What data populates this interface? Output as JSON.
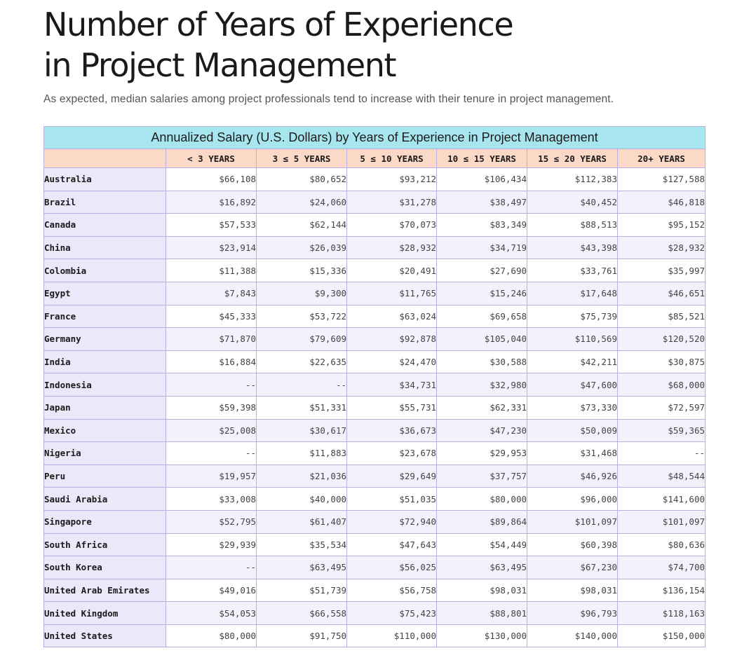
{
  "page": {
    "title_line1": "Number of Years of Experience",
    "title_line2": "in Project Management",
    "subtitle": "As expected, median salaries among project professionals tend to increase with their tenure in project management."
  },
  "colors": {
    "caption_bg": "#a8e6ef",
    "header_bg": "#fcd9c7",
    "country_bg": "#ebe8fa",
    "border": "#b7b0e0"
  },
  "chart_data": {
    "type": "table",
    "title": "Annualized Salary (U.S. Dollars) by Years of Experience in Project Management",
    "columns": [
      "< 3 YEARS",
      "3 ≤ 5 YEARS",
      "5 ≤ 10 YEARS",
      "10 ≤ 15 YEARS",
      "15 ≤ 20 YEARS",
      "20+ YEARS"
    ],
    "rows": [
      {
        "country": "Australia",
        "values": [
          "$66,108",
          "$80,652",
          "$93,212",
          "$106,434",
          "$112,383",
          "$127,588"
        ]
      },
      {
        "country": "Brazil",
        "values": [
          "$16,892",
          "$24,060",
          "$31,278",
          "$38,497",
          "$40,452",
          "$46,818"
        ]
      },
      {
        "country": "Canada",
        "values": [
          "$57,533",
          "$62,144",
          "$70,073",
          "$83,349",
          "$88,513",
          "$95,152"
        ]
      },
      {
        "country": "China",
        "values": [
          "$23,914",
          "$26,039",
          "$28,932",
          "$34,719",
          "$43,398",
          "$28,932"
        ]
      },
      {
        "country": "Colombia",
        "values": [
          "$11,388",
          "$15,336",
          "$20,491",
          "$27,690",
          "$33,761",
          "$35,997"
        ]
      },
      {
        "country": "Egypt",
        "values": [
          "$7,843",
          "$9,300",
          "$11,765",
          "$15,246",
          "$17,648",
          "$46,651"
        ]
      },
      {
        "country": "France",
        "values": [
          "$45,333",
          "$53,722",
          "$63,024",
          "$69,658",
          "$75,739",
          "$85,521"
        ]
      },
      {
        "country": "Germany",
        "values": [
          "$71,870",
          "$79,609",
          "$92,878",
          "$105,040",
          "$110,569",
          "$120,520"
        ]
      },
      {
        "country": "India",
        "values": [
          "$16,884",
          "$22,635",
          "$24,470",
          "$30,588",
          "$42,211",
          "$30,875"
        ]
      },
      {
        "country": "Indonesia",
        "values": [
          "--",
          "--",
          "$34,731",
          "$32,980",
          "$47,600",
          "$68,000"
        ]
      },
      {
        "country": "Japan",
        "values": [
          "$59,398",
          "$51,331",
          "$55,731",
          "$62,331",
          "$73,330",
          "$72,597"
        ]
      },
      {
        "country": "Mexico",
        "values": [
          "$25,008",
          "$30,617",
          "$36,673",
          "$47,230",
          "$50,009",
          "$59,365"
        ]
      },
      {
        "country": "Nigeria",
        "values": [
          "--",
          "$11,883",
          "$23,678",
          "$29,953",
          "$31,468",
          "--"
        ]
      },
      {
        "country": "Peru",
        "values": [
          "$19,957",
          "$21,036",
          "$29,649",
          "$37,757",
          "$46,926",
          "$48,544"
        ]
      },
      {
        "country": "Saudi Arabia",
        "values": [
          "$33,008",
          "$40,000",
          "$51,035",
          "$80,000",
          "$96,000",
          "$141,600"
        ]
      },
      {
        "country": "Singapore",
        "values": [
          "$52,795",
          "$61,407",
          "$72,940",
          "$89,864",
          "$101,097",
          "$101,097"
        ]
      },
      {
        "country": "South Africa",
        "values": [
          "$29,939",
          "$35,534",
          "$47,643",
          "$54,449",
          "$60,398",
          "$80,636"
        ]
      },
      {
        "country": "South Korea",
        "values": [
          "--",
          "$63,495",
          "$56,025",
          "$63,495",
          "$67,230",
          "$74,700"
        ]
      },
      {
        "country": "United Arab Emirates",
        "values": [
          "$49,016",
          "$51,739",
          "$56,758",
          "$98,031",
          "$98,031",
          "$136,154"
        ]
      },
      {
        "country": "United Kingdom",
        "values": [
          "$54,053",
          "$66,558",
          "$75,423",
          "$88,801",
          "$96,793",
          "$118,163"
        ]
      },
      {
        "country": "United States",
        "values": [
          "$80,000",
          "$91,750",
          "$110,000",
          "$130,000",
          "$140,000",
          "$150,000"
        ]
      }
    ]
  }
}
